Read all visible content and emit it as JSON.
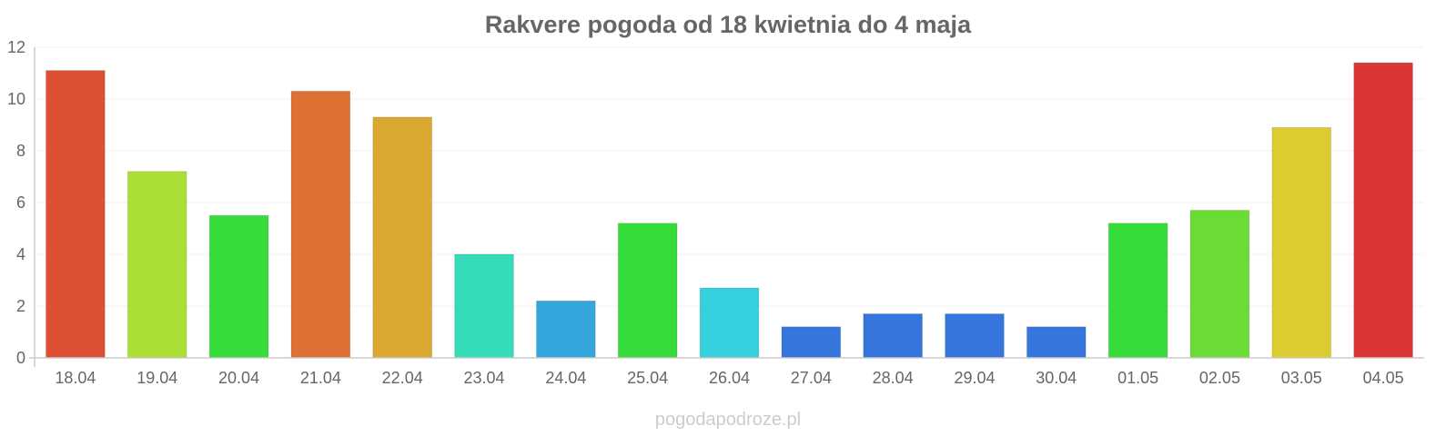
{
  "chart_data": {
    "type": "bar",
    "title": "Rakvere pogoda od 18 kwietnia do 4 maja",
    "xlabel": "",
    "ylabel": "",
    "ylim": [
      0,
      12
    ],
    "yticks": [
      0,
      2,
      4,
      6,
      8,
      10,
      12
    ],
    "grid": true,
    "categories": [
      "18.04",
      "19.04",
      "20.04",
      "21.04",
      "22.04",
      "23.04",
      "24.04",
      "25.04",
      "26.04",
      "27.04",
      "28.04",
      "29.04",
      "30.04",
      "01.05",
      "02.05",
      "03.05",
      "04.05"
    ],
    "values": [
      11.1,
      7.2,
      5.5,
      10.3,
      9.3,
      4.0,
      2.2,
      5.2,
      2.7,
      1.2,
      1.7,
      1.7,
      1.2,
      5.2,
      5.7,
      8.9,
      11.4
    ],
    "colors": [
      "#dd5033",
      "#acdf36",
      "#36dd3a",
      "#de7034",
      "#dba832",
      "#35dcb8",
      "#35a6dc",
      "#36dd3a",
      "#36cfdd",
      "#3575dc",
      "#3575dc",
      "#3575dc",
      "#3575dc",
      "#36dd3a",
      "#6bdb35",
      "#dccc32",
      "#dc3535"
    ]
  },
  "footer": {
    "source": "pogodapodroze.pl"
  }
}
